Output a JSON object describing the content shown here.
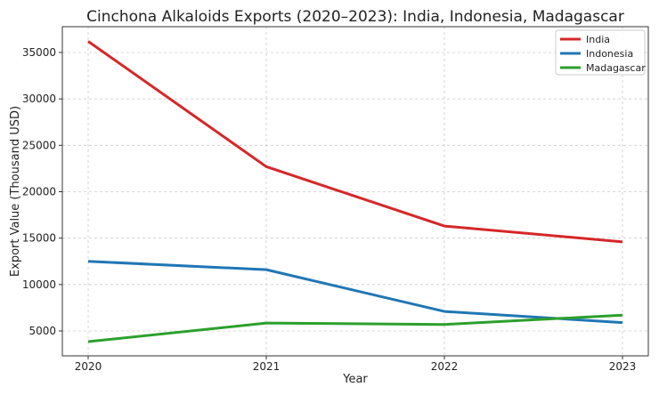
{
  "chart_data": {
    "type": "line",
    "title": "Cinchona Alkaloids Exports (2020–2023): India, Indonesia, Madagascar",
    "xlabel": "Year",
    "ylabel": "Export Value (Thousand USD)",
    "x": [
      2020,
      2021,
      2022,
      2023
    ],
    "x_ticks": [
      "2020",
      "2021",
      "2022",
      "2023"
    ],
    "y_ticks": [
      5000,
      10000,
      15000,
      20000,
      25000,
      30000,
      35000
    ],
    "xlim": [
      2019.855,
      2023.145
    ],
    "ylim": [
      2316,
      37780
    ],
    "grid": true,
    "legend_position": "top-right",
    "series": [
      {
        "name": "India",
        "color": "#d62728",
        "values": [
          36200,
          22700,
          16300,
          14600
        ]
      },
      {
        "name": "Indonesia",
        "color": "#1f77b4",
        "values": [
          12500,
          11600,
          7100,
          5900
        ]
      },
      {
        "name": "Madagascar",
        "color": "#2ca02c",
        "values": [
          3850,
          5850,
          5700,
          6700
        ]
      }
    ]
  }
}
